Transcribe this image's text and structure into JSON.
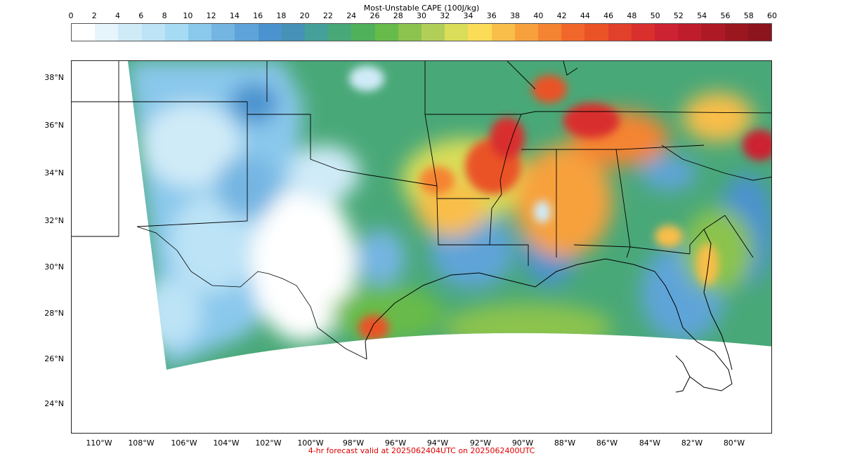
{
  "colorbar": {
    "title": "Most-Unstable CAPE (100J/kg)",
    "ticks": [
      "0",
      "2",
      "4",
      "6",
      "8",
      "10",
      "12",
      "14",
      "16",
      "18",
      "20",
      "22",
      "24",
      "26",
      "28",
      "30",
      "32",
      "34",
      "36",
      "38",
      "40",
      "42",
      "44",
      "46",
      "48",
      "50",
      "52",
      "54",
      "56",
      "58",
      "60"
    ],
    "colors": [
      "#ffffff",
      "#e6f4fb",
      "#d0ebf8",
      "#bce3f6",
      "#a6dbf4",
      "#8ac8ec",
      "#74b5e2",
      "#5ea4d8",
      "#4b93cf",
      "#4692b7",
      "#46a09a",
      "#49a878",
      "#4fb15a",
      "#67bb4a",
      "#8bc34e",
      "#b1cf58",
      "#d9dd59",
      "#fbdc57",
      "#f9be4a",
      "#f7a13d",
      "#f58432",
      "#f1672b",
      "#ea5326",
      "#e1402a",
      "#d92f2d",
      "#cc2231",
      "#bf1d2b",
      "#ad1a25",
      "#9b1720",
      "#8c141c"
    ]
  },
  "map": {
    "lat_labels": [
      "38°N",
      "36°N",
      "34°N",
      "32°N",
      "30°N",
      "28°N",
      "26°N",
      "24°N"
    ],
    "lon_labels": [
      "110°W",
      "108°W",
      "106°W",
      "104°W",
      "102°W",
      "100°W",
      "98°W",
      "96°W",
      "94°W",
      "92°W",
      "90°W",
      "88°W",
      "86°W",
      "84°W",
      "82°W",
      "80°W"
    ]
  },
  "footer": "4-hr forecast valid at 2025062404UTC on 2025062400UTC"
}
